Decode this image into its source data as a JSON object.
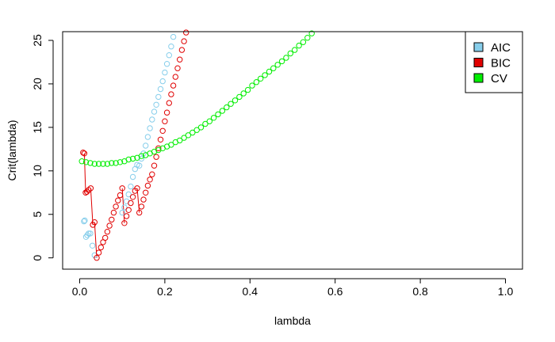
{
  "chart_data": {
    "type": "scatter",
    "xlabel": "lambda",
    "ylabel": "Crit(lambda)",
    "xlim": [
      -0.04,
      1.04
    ],
    "ylim": [
      -1.3,
      26.0
    ],
    "xticks": [
      "0.0",
      "0.2",
      "0.4",
      "0.6",
      "0.8",
      "1.0"
    ],
    "yticks": [
      "0",
      "5",
      "10",
      "15",
      "20",
      "25"
    ],
    "grid": false,
    "legend_position": "top-right",
    "series": [
      {
        "name": "AIC",
        "color": "#87ceeb",
        "points": [
          [
            0.01,
            4.2
          ],
          [
            0.012,
            4.3
          ],
          [
            0.015,
            2.4
          ],
          [
            0.018,
            2.6
          ],
          [
            0.021,
            2.8
          ],
          [
            0.025,
            2.8
          ],
          [
            0.03,
            1.4
          ],
          [
            0.035,
            0.3
          ],
          [
            0.1,
            5.2
          ],
          [
            0.105,
            5.8
          ],
          [
            0.11,
            6.5
          ],
          [
            0.115,
            7.3
          ],
          [
            0.12,
            8.2
          ],
          [
            0.125,
            9.3
          ],
          [
            0.13,
            10.2
          ],
          [
            0.135,
            10.7
          ],
          [
            0.14,
            10.6
          ],
          [
            0.145,
            11.4
          ],
          [
            0.15,
            12.0
          ],
          [
            0.155,
            12.9
          ],
          [
            0.16,
            13.9
          ],
          [
            0.165,
            14.9
          ],
          [
            0.17,
            15.9
          ],
          [
            0.175,
            16.8
          ],
          [
            0.18,
            17.6
          ],
          [
            0.185,
            18.5
          ],
          [
            0.19,
            19.4
          ],
          [
            0.195,
            20.3
          ],
          [
            0.2,
            21.3
          ],
          [
            0.205,
            22.3
          ],
          [
            0.21,
            23.3
          ],
          [
            0.215,
            24.3
          ],
          [
            0.22,
            25.4
          ]
        ]
      },
      {
        "name": "BIC",
        "color": "#e00000",
        "points": [
          [
            0.008,
            12.1
          ],
          [
            0.011,
            12.0
          ],
          [
            0.014,
            7.5
          ],
          [
            0.017,
            7.6
          ],
          [
            0.021,
            7.8
          ],
          [
            0.026,
            8.0
          ],
          [
            0.031,
            3.8
          ],
          [
            0.035,
            4.1
          ],
          [
            0.04,
            0.0
          ],
          [
            0.045,
            0.6
          ],
          [
            0.05,
            1.2
          ],
          [
            0.055,
            1.8
          ],
          [
            0.06,
            2.3
          ],
          [
            0.065,
            3.0
          ],
          [
            0.07,
            3.7
          ],
          [
            0.075,
            4.4
          ],
          [
            0.08,
            5.2
          ],
          [
            0.085,
            5.9
          ],
          [
            0.09,
            6.6
          ],
          [
            0.095,
            7.2
          ],
          [
            0.1,
            8.0
          ],
          [
            0.105,
            4.0
          ],
          [
            0.11,
            4.8
          ],
          [
            0.115,
            5.5
          ],
          [
            0.12,
            6.3
          ],
          [
            0.125,
            7.0
          ],
          [
            0.13,
            7.7
          ],
          [
            0.135,
            8.0
          ],
          [
            0.14,
            5.2
          ],
          [
            0.145,
            5.9
          ],
          [
            0.15,
            6.7
          ],
          [
            0.155,
            7.5
          ],
          [
            0.16,
            8.3
          ],
          [
            0.165,
            9.0
          ],
          [
            0.17,
            9.6
          ],
          [
            0.175,
            10.6
          ],
          [
            0.18,
            11.6
          ],
          [
            0.185,
            12.6
          ],
          [
            0.19,
            13.6
          ],
          [
            0.195,
            14.6
          ],
          [
            0.2,
            15.7
          ],
          [
            0.205,
            16.7
          ],
          [
            0.21,
            17.8
          ],
          [
            0.215,
            18.8
          ],
          [
            0.22,
            19.8
          ],
          [
            0.225,
            20.8
          ],
          [
            0.23,
            21.8
          ],
          [
            0.235,
            22.8
          ],
          [
            0.24,
            23.9
          ],
          [
            0.245,
            24.9
          ],
          [
            0.25,
            25.9
          ]
        ]
      },
      {
        "name": "CV",
        "color": "#00ee00",
        "points": [
          [
            0.005,
            11.1
          ],
          [
            0.015,
            11.0
          ],
          [
            0.025,
            10.9
          ],
          [
            0.035,
            10.8
          ],
          [
            0.045,
            10.8
          ],
          [
            0.055,
            10.8
          ],
          [
            0.065,
            10.8
          ],
          [
            0.075,
            10.9
          ],
          [
            0.085,
            10.9
          ],
          [
            0.095,
            11.0
          ],
          [
            0.105,
            11.1
          ],
          [
            0.115,
            11.3
          ],
          [
            0.125,
            11.4
          ],
          [
            0.135,
            11.5
          ],
          [
            0.145,
            11.7
          ],
          [
            0.155,
            11.8
          ],
          [
            0.165,
            12.0
          ],
          [
            0.175,
            12.2
          ],
          [
            0.185,
            12.4
          ],
          [
            0.195,
            12.6
          ],
          [
            0.205,
            12.8
          ],
          [
            0.215,
            13.0
          ],
          [
            0.225,
            13.3
          ],
          [
            0.235,
            13.5
          ],
          [
            0.245,
            13.8
          ],
          [
            0.255,
            14.1
          ],
          [
            0.265,
            14.4
          ],
          [
            0.275,
            14.7
          ],
          [
            0.285,
            15.0
          ],
          [
            0.295,
            15.4
          ],
          [
            0.305,
            15.7
          ],
          [
            0.315,
            16.1
          ],
          [
            0.325,
            16.5
          ],
          [
            0.335,
            16.9
          ],
          [
            0.345,
            17.3
          ],
          [
            0.355,
            17.7
          ],
          [
            0.365,
            18.1
          ],
          [
            0.375,
            18.5
          ],
          [
            0.385,
            18.9
          ],
          [
            0.395,
            19.3
          ],
          [
            0.405,
            19.8
          ],
          [
            0.415,
            20.2
          ],
          [
            0.425,
            20.6
          ],
          [
            0.435,
            21.0
          ],
          [
            0.445,
            21.4
          ],
          [
            0.455,
            21.8
          ],
          [
            0.465,
            22.2
          ],
          [
            0.475,
            22.6
          ],
          [
            0.485,
            23.0
          ],
          [
            0.495,
            23.5
          ],
          [
            0.505,
            23.9
          ],
          [
            0.515,
            24.4
          ],
          [
            0.525,
            24.8
          ],
          [
            0.535,
            25.3
          ],
          [
            0.545,
            25.8
          ]
        ]
      }
    ],
    "connectors": [
      {
        "color": "#e00000",
        "path": [
          [
            0.011,
            12.0
          ],
          [
            0.014,
            7.5
          ]
        ]
      },
      {
        "color": "#e00000",
        "path": [
          [
            0.026,
            8.0
          ],
          [
            0.031,
            3.8
          ]
        ]
      },
      {
        "color": "#e00000",
        "path": [
          [
            0.035,
            4.1
          ],
          [
            0.04,
            0.0
          ]
        ]
      },
      {
        "color": "#e00000",
        "path": [
          [
            0.1,
            8.0
          ],
          [
            0.105,
            4.0
          ]
        ]
      },
      {
        "color": "#e00000",
        "path": [
          [
            0.135,
            8.0
          ],
          [
            0.14,
            5.2
          ]
        ]
      }
    ]
  }
}
